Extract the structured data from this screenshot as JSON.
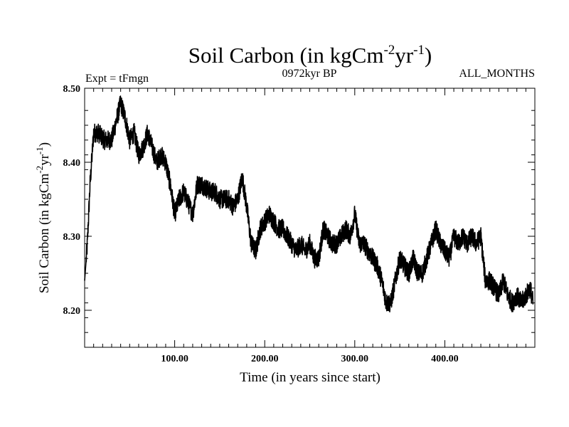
{
  "chart_data": {
    "type": "line",
    "title": {
      "main": "Soil Carbon (in kgCm",
      "sup1": "-2",
      "mid": "yr",
      "sup2": "-1",
      "end": ")"
    },
    "subtitle_left": "Expt = tFmgn",
    "subtitle_center": "0972kyr BP",
    "subtitle_right": "ALL_MONTHS",
    "xlabel": "Time (in years since start)",
    "ylabel": {
      "main": "Soil Carbon (in kgCm",
      "sup1": "-2",
      "mid": "yr",
      "sup2": "-1",
      "end": ")"
    },
    "xlim": [
      0,
      500
    ],
    "ylim": [
      8.15,
      8.5
    ],
    "xticks": [
      100,
      200,
      300,
      400
    ],
    "xtick_labels": [
      "100.00",
      "200.00",
      "300.00",
      "400.00"
    ],
    "yticks": [
      8.2,
      8.3,
      8.4,
      8.5
    ],
    "ytick_labels": [
      "8.20",
      "8.30",
      "8.40",
      "8.50"
    ],
    "series": [
      {
        "name": "Soil Carbon",
        "color": "#000000",
        "anchors": [
          [
            0,
            8.24
          ],
          [
            3,
            8.29
          ],
          [
            6,
            8.37
          ],
          [
            10,
            8.44
          ],
          [
            15,
            8.44
          ],
          [
            22,
            8.43
          ],
          [
            30,
            8.43
          ],
          [
            36,
            8.46
          ],
          [
            40,
            8.48
          ],
          [
            45,
            8.46
          ],
          [
            50,
            8.43
          ],
          [
            55,
            8.44
          ],
          [
            60,
            8.41
          ],
          [
            65,
            8.42
          ],
          [
            70,
            8.44
          ],
          [
            75,
            8.42
          ],
          [
            80,
            8.4
          ],
          [
            85,
            8.41
          ],
          [
            90,
            8.4
          ],
          [
            95,
            8.37
          ],
          [
            100,
            8.33
          ],
          [
            105,
            8.35
          ],
          [
            110,
            8.36
          ],
          [
            120,
            8.33
          ],
          [
            125,
            8.37
          ],
          [
            130,
            8.37
          ],
          [
            140,
            8.36
          ],
          [
            145,
            8.36
          ],
          [
            150,
            8.35
          ],
          [
            160,
            8.35
          ],
          [
            165,
            8.34
          ],
          [
            170,
            8.35
          ],
          [
            175,
            8.38
          ],
          [
            180,
            8.34
          ],
          [
            185,
            8.29
          ],
          [
            190,
            8.28
          ],
          [
            195,
            8.31
          ],
          [
            200,
            8.32
          ],
          [
            205,
            8.33
          ],
          [
            210,
            8.32
          ],
          [
            215,
            8.31
          ],
          [
            220,
            8.31
          ],
          [
            225,
            8.3
          ],
          [
            230,
            8.29
          ],
          [
            235,
            8.28
          ],
          [
            240,
            8.29
          ],
          [
            245,
            8.28
          ],
          [
            250,
            8.29
          ],
          [
            255,
            8.27
          ],
          [
            260,
            8.27
          ],
          [
            265,
            8.31
          ],
          [
            270,
            8.3
          ],
          [
            275,
            8.29
          ],
          [
            280,
            8.29
          ],
          [
            285,
            8.3
          ],
          [
            290,
            8.31
          ],
          [
            295,
            8.3
          ],
          [
            300,
            8.33
          ],
          [
            305,
            8.29
          ],
          [
            310,
            8.29
          ],
          [
            315,
            8.28
          ],
          [
            320,
            8.27
          ],
          [
            325,
            8.26
          ],
          [
            330,
            8.24
          ],
          [
            335,
            8.21
          ],
          [
            340,
            8.21
          ],
          [
            345,
            8.24
          ],
          [
            350,
            8.27
          ],
          [
            355,
            8.26
          ],
          [
            360,
            8.25
          ],
          [
            365,
            8.27
          ],
          [
            370,
            8.25
          ],
          [
            375,
            8.25
          ],
          [
            380,
            8.27
          ],
          [
            385,
            8.29
          ],
          [
            390,
            8.31
          ],
          [
            395,
            8.29
          ],
          [
            400,
            8.28
          ],
          [
            405,
            8.27
          ],
          [
            410,
            8.3
          ],
          [
            415,
            8.29
          ],
          [
            420,
            8.3
          ],
          [
            425,
            8.29
          ],
          [
            430,
            8.3
          ],
          [
            435,
            8.29
          ],
          [
            440,
            8.3
          ],
          [
            445,
            8.24
          ],
          [
            450,
            8.24
          ],
          [
            455,
            8.23
          ],
          [
            460,
            8.22
          ],
          [
            465,
            8.24
          ],
          [
            470,
            8.22
          ],
          [
            475,
            8.21
          ],
          [
            480,
            8.22
          ],
          [
            485,
            8.21
          ],
          [
            490,
            8.22
          ],
          [
            495,
            8.23
          ],
          [
            498,
            8.21
          ]
        ]
      }
    ]
  }
}
